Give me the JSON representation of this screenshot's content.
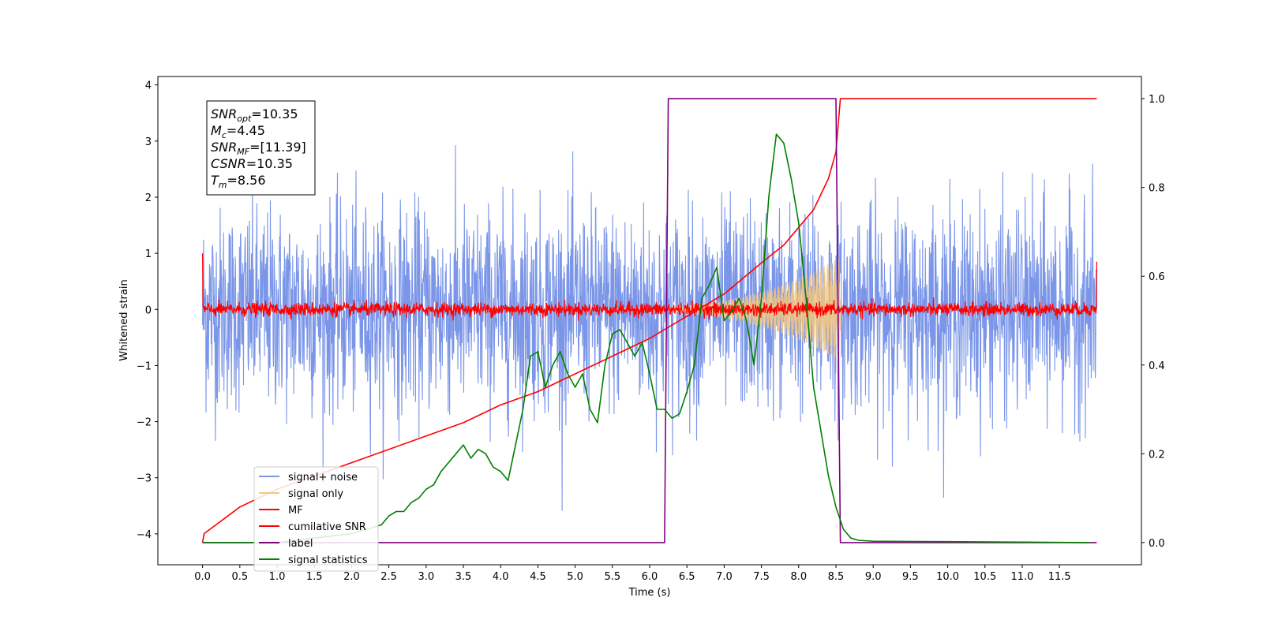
{
  "chart_data": {
    "type": "line",
    "title": "",
    "xlabel": "Time (s)",
    "ylabel": "Whitened strain",
    "xlim": [
      -0.6,
      12.6
    ],
    "ylim": [
      -4.55,
      4.15
    ],
    "y2lim": [
      -0.05,
      1.05
    ],
    "xticks": [
      "0.0",
      "0.5",
      "1.0",
      "1.5",
      "2.0",
      "2.5",
      "3.0",
      "3.5",
      "4.0",
      "4.5",
      "5.0",
      "5.5",
      "6.0",
      "6.5",
      "7.0",
      "7.5",
      "8.0",
      "8.5",
      "9.0",
      "9.5",
      "10.0",
      "10.5",
      "11.0",
      "11.5"
    ],
    "yticks": [
      "4",
      "3",
      "2",
      "1",
      "0",
      "−1",
      "−2",
      "−3",
      "−4"
    ],
    "y2ticks": [
      "1.0",
      "0.8",
      "0.6",
      "0.4",
      "0.2",
      "0.0"
    ],
    "grid": false,
    "legend_position": "lower-left",
    "annotation": [
      {
        "base": "SNR",
        "sub": "opt",
        "value": "=10.35"
      },
      {
        "base": "M",
        "sub": "c",
        "value": "=4.45"
      },
      {
        "base": "SNR",
        "sub": "MF",
        "value": "=[11.39]"
      },
      {
        "base": "CSNR",
        "sub": "",
        "value": "=10.35"
      },
      {
        "base": "T",
        "sub": "m",
        "value": "=8.56"
      }
    ],
    "series": [
      {
        "name": "signal+ noise",
        "color": "#7b96e8",
        "axis": "left",
        "kind": "noise",
        "x_range": [
          0,
          12
        ],
        "amplitude": 1.05,
        "peak_max": 3.4,
        "peak_min": -4.0
      },
      {
        "name": "signal only",
        "color": "#f5c77e",
        "axis": "left",
        "kind": "chirp",
        "x_range": [
          5.3,
          8.56
        ],
        "max_amplitude": 0.85
      },
      {
        "name": "MF",
        "color": "#ff0000",
        "axis": "left",
        "kind": "mf-noise",
        "x_range": [
          0,
          12
        ],
        "amplitude": 0.06,
        "endpoint_values": [
          1.0,
          0.85
        ]
      },
      {
        "name": "cumilative SNR",
        "color": "#ff0000",
        "axis": "right",
        "x": [
          0.0,
          0.02,
          0.5,
          1.0,
          1.5,
          2.0,
          2.5,
          3.0,
          3.5,
          4.0,
          4.5,
          5.0,
          5.5,
          6.0,
          6.5,
          7.0,
          7.5,
          7.8,
          8.0,
          8.2,
          8.4,
          8.5,
          8.56,
          12.0
        ],
        "y": [
          0.0,
          0.02,
          0.08,
          0.12,
          0.15,
          0.18,
          0.21,
          0.24,
          0.27,
          0.31,
          0.34,
          0.38,
          0.42,
          0.46,
          0.51,
          0.56,
          0.63,
          0.67,
          0.71,
          0.75,
          0.82,
          0.88,
          1.0,
          1.0
        ]
      },
      {
        "name": "label",
        "color": "#800080",
        "axis": "right",
        "x": [
          0.0,
          6.2,
          6.25,
          8.5,
          8.56,
          12.0
        ],
        "y": [
          0.0,
          0.0,
          1.0,
          1.0,
          0.0,
          0.0
        ]
      },
      {
        "name": "signal statistics",
        "color": "#008000",
        "axis": "right",
        "x": [
          0.0,
          0.5,
          1.0,
          1.5,
          2.0,
          2.2,
          2.4,
          2.5,
          2.6,
          2.7,
          2.8,
          2.9,
          3.0,
          3.1,
          3.2,
          3.3,
          3.4,
          3.5,
          3.6,
          3.7,
          3.8,
          3.9,
          4.0,
          4.1,
          4.2,
          4.3,
          4.4,
          4.5,
          4.6,
          4.7,
          4.8,
          4.9,
          5.0,
          5.1,
          5.2,
          5.3,
          5.4,
          5.5,
          5.6,
          5.7,
          5.8,
          5.9,
          6.0,
          6.1,
          6.2,
          6.3,
          6.4,
          6.5,
          6.6,
          6.7,
          6.8,
          6.9,
          7.0,
          7.1,
          7.2,
          7.3,
          7.4,
          7.5,
          7.6,
          7.7,
          7.8,
          7.9,
          8.0,
          8.1,
          8.2,
          8.3,
          8.4,
          8.5,
          8.6,
          8.7,
          8.8,
          9.0,
          10.0,
          11.0,
          11.9
        ],
        "y": [
          0.0,
          0.0,
          0.0,
          0.01,
          0.02,
          0.03,
          0.04,
          0.06,
          0.07,
          0.07,
          0.09,
          0.1,
          0.12,
          0.13,
          0.16,
          0.18,
          0.2,
          0.22,
          0.19,
          0.21,
          0.2,
          0.17,
          0.16,
          0.14,
          0.22,
          0.3,
          0.42,
          0.43,
          0.35,
          0.4,
          0.43,
          0.38,
          0.35,
          0.38,
          0.3,
          0.27,
          0.4,
          0.47,
          0.48,
          0.45,
          0.42,
          0.45,
          0.38,
          0.3,
          0.3,
          0.28,
          0.29,
          0.34,
          0.4,
          0.55,
          0.58,
          0.62,
          0.5,
          0.52,
          0.55,
          0.5,
          0.4,
          0.55,
          0.78,
          0.92,
          0.9,
          0.82,
          0.72,
          0.55,
          0.35,
          0.25,
          0.15,
          0.08,
          0.03,
          0.01,
          0.005,
          0.003,
          0.002,
          0.001,
          0.0
        ]
      }
    ]
  }
}
